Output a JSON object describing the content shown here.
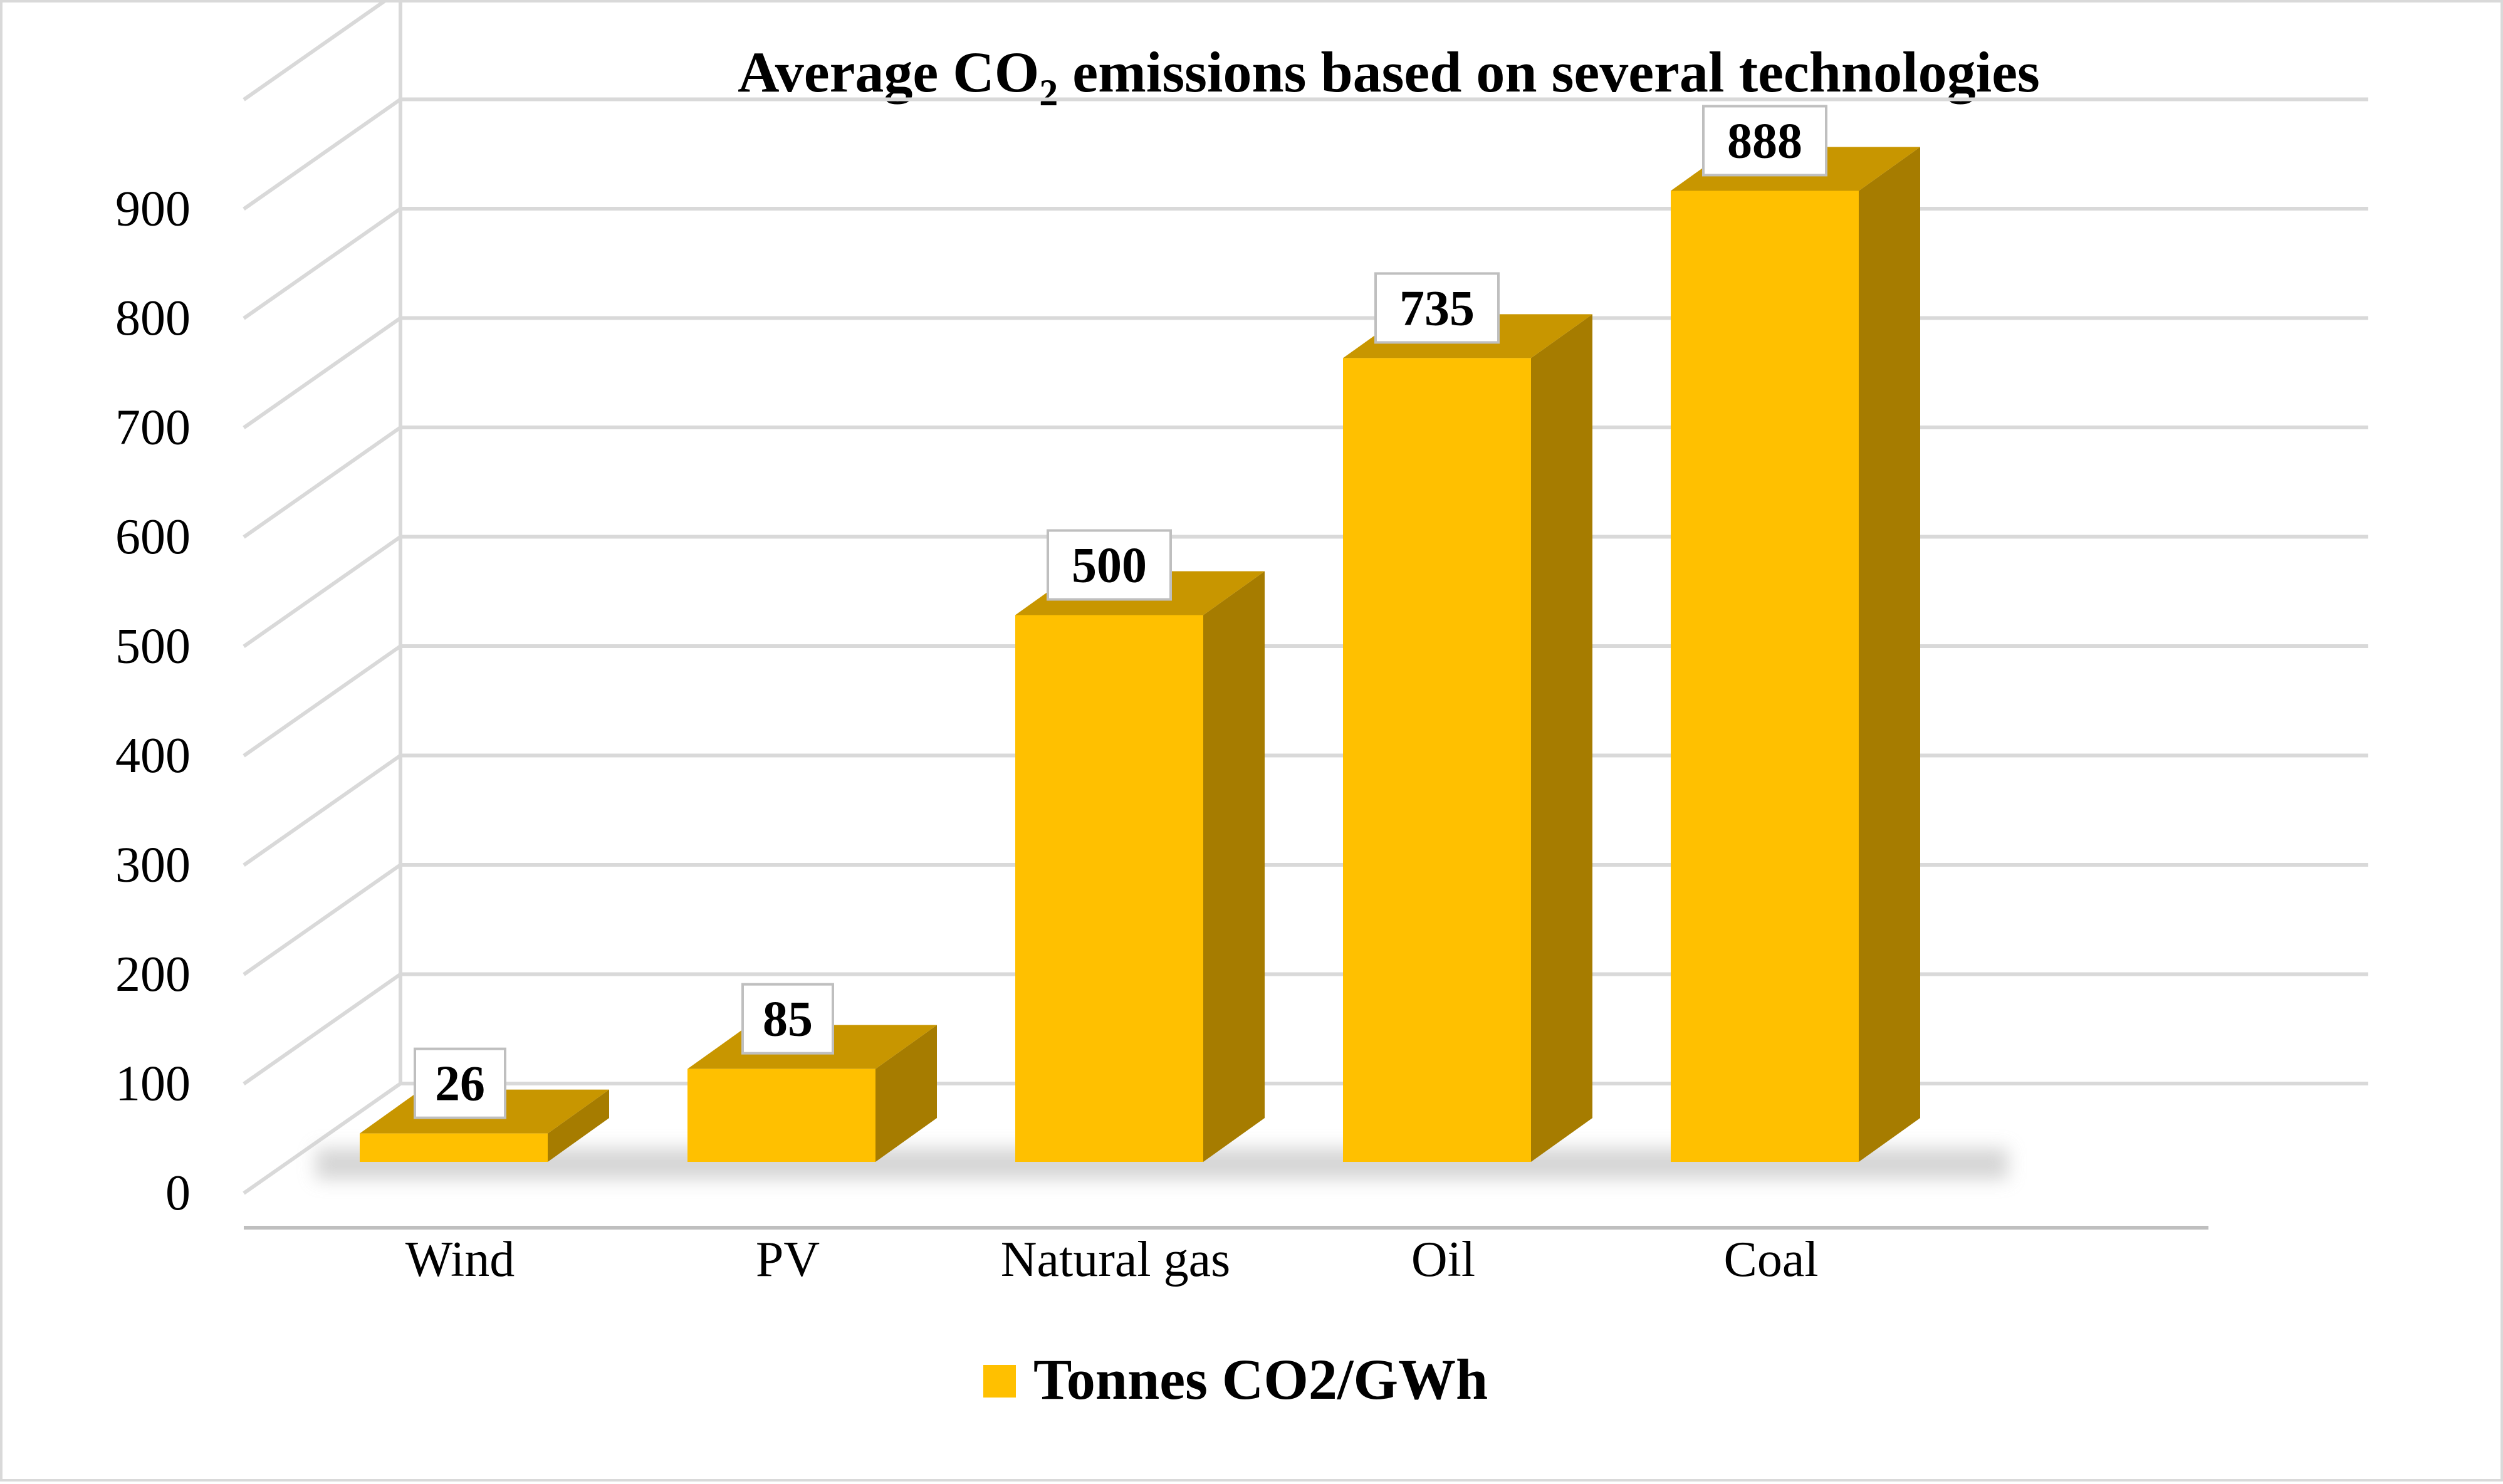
{
  "chart_data": {
    "type": "bar",
    "style": "3d-column",
    "title": "Average CO",
    "title_subscript": "2",
    "title_suffix": " emissions based on several technologies",
    "categories": [
      "Wind",
      "PV",
      "Natural gas",
      "Oil",
      "Coal"
    ],
    "series": [
      {
        "name": "Tonnes CO2/GWh",
        "values": [
          26,
          85,
          500,
          735,
          888
        ]
      }
    ],
    "data_labels": [
      "26",
      "85",
      "500",
      "735",
      "888"
    ],
    "yticks": [
      0,
      100,
      200,
      300,
      400,
      500,
      600,
      700,
      800,
      900
    ],
    "ylim": [
      0,
      1000
    ],
    "xlabel": "",
    "ylabel": "",
    "grid": true,
    "legend_position": "bottom",
    "colors": {
      "front": "#FFC000",
      "side": "#A67C00",
      "top": "#C89600"
    }
  }
}
